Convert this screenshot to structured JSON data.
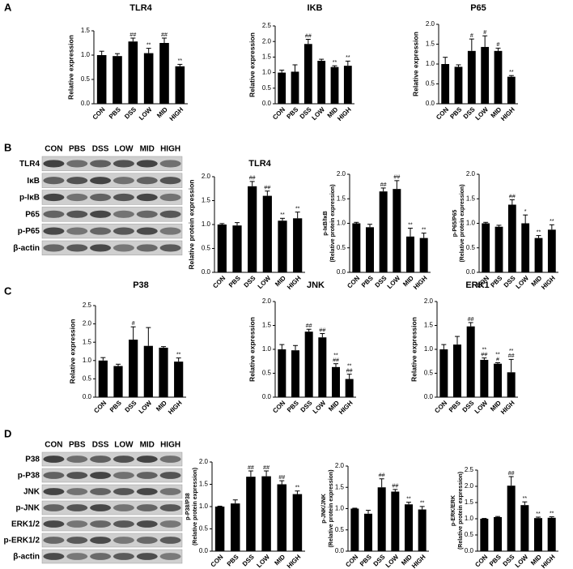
{
  "panels": [
    "A",
    "B",
    "C",
    "D"
  ],
  "blots": [
    {
      "lanes": [
        "CON",
        "PBS",
        "DSS",
        "LOW",
        "MID",
        "HIGH"
      ],
      "rows": [
        "TLR4",
        "IκB",
        "p-IκB",
        "P65",
        "p-P65",
        "β-actin"
      ]
    },
    {
      "lanes": [
        "CON",
        "PBS",
        "DSS",
        "LOW",
        "MID",
        "HIGH"
      ],
      "rows": [
        "P38",
        "p-P38",
        "JNK",
        "p-JNK",
        "ERK1/2",
        "p-ERK1/2",
        "β-actin"
      ]
    }
  ],
  "chart_data": [
    {
      "type": "bar",
      "title": "TLR4",
      "ylabel": "Relative expression",
      "color": "#000000",
      "categories": [
        "CON",
        "PBS",
        "DSS",
        "LOW",
        "MID",
        "HIGH"
      ],
      "values": [
        1.0,
        0.98,
        1.28,
        1.04,
        1.25,
        0.77
      ],
      "errors": [
        0.08,
        0.05,
        0.07,
        0.1,
        0.1,
        0.04
      ],
      "annotations": [
        [],
        [],
        [
          "##"
        ],
        [
          "**"
        ],
        [
          "##"
        ],
        [
          "**"
        ]
      ],
      "ylim": [
        0,
        1.5
      ],
      "yticks": [
        {
          "value": 0,
          "label": "0.0"
        },
        0.5,
        {
          "value": 1,
          "label": "1.0"
        },
        1.5
      ]
    },
    {
      "type": "bar",
      "title": "IKB",
      "ylabel": "Relative expression",
      "color": "#000000",
      "categories": [
        "CON",
        "PBS",
        "DSS",
        "LOW",
        "MID",
        "HIGH"
      ],
      "values": [
        1.0,
        1.03,
        1.92,
        1.38,
        1.18,
        1.22
      ],
      "errors": [
        0.08,
        0.22,
        0.15,
        0.05,
        0.04,
        0.15
      ],
      "annotations": [
        [],
        [],
        [
          "##"
        ],
        [],
        [
          "**"
        ],
        [
          "**"
        ]
      ],
      "ylim": [
        0,
        2.5
      ],
      "yticks": [
        {
          "value": 0,
          "label": "0.0"
        },
        0.5,
        {
          "value": 1,
          "label": "1.0"
        },
        1.5,
        {
          "value": 2,
          "label": "2.0"
        },
        2.5
      ]
    },
    {
      "type": "bar",
      "title": "P65",
      "ylabel": "Relative expression",
      "color": "#000000",
      "categories": [
        "CON",
        "PBS",
        "DSS",
        "LOW",
        "MID",
        "HIGH"
      ],
      "values": [
        1.0,
        0.93,
        1.33,
        1.43,
        1.33,
        0.68
      ],
      "errors": [
        0.17,
        0.05,
        0.3,
        0.28,
        0.07,
        0.03
      ],
      "annotations": [
        [],
        [],
        [
          "#"
        ],
        [
          "#"
        ],
        [
          "#"
        ],
        [
          "**"
        ]
      ],
      "ylim": [
        0,
        2.0
      ],
      "yticks": [
        {
          "value": 0,
          "label": "0.0"
        },
        0.5,
        {
          "value": 1,
          "label": "1.0"
        },
        1.5,
        {
          "value": 2,
          "label": "2.0"
        }
      ]
    },
    {
      "type": "bar",
      "title": "TLR4",
      "ylabel": "Relative protein expression",
      "color": "#000000",
      "categories": [
        "CON",
        "PBS",
        "DSS",
        "LOW",
        "MID",
        "HIGH"
      ],
      "values": [
        1.0,
        0.98,
        1.8,
        1.6,
        1.08,
        1.13
      ],
      "errors": [
        0.02,
        0.06,
        0.1,
        0.1,
        0.05,
        0.13
      ],
      "annotations": [
        [],
        [],
        [
          "##"
        ],
        [
          "##"
        ],
        [
          "**"
        ],
        [
          "**"
        ]
      ],
      "ylim": [
        0,
        2.0
      ],
      "yticks": [
        {
          "value": 0,
          "label": "0.0"
        },
        0.5,
        {
          "value": 1,
          "label": "1.0"
        },
        1.5,
        {
          "value": 2,
          "label": "2.0"
        }
      ]
    },
    {
      "type": "bar",
      "ylabel": [
        "p-IκB/IκB",
        "(Relative protein expression)"
      ],
      "color": "#000000",
      "categories": [
        "CON",
        "PBS",
        "DSS",
        "LOW",
        "MID",
        "HIGH"
      ],
      "values": [
        1.0,
        0.92,
        1.65,
        1.7,
        0.73,
        0.7
      ],
      "errors": [
        0.02,
        0.06,
        0.07,
        0.17,
        0.17,
        0.1
      ],
      "annotations": [
        [],
        [],
        [
          "##"
        ],
        [
          "##"
        ],
        [
          "**"
        ],
        [
          "**"
        ]
      ],
      "ylim": [
        0,
        2.0
      ],
      "yticks": [
        {
          "value": 0,
          "label": "0.0"
        },
        0.5,
        {
          "value": 1,
          "label": "1.0"
        },
        1.5,
        {
          "value": 2,
          "label": "2.0"
        }
      ]
    },
    {
      "type": "bar",
      "ylabel": [
        "p-P65/P65",
        "(Relative protein expression)"
      ],
      "color": "#000000",
      "categories": [
        "CON",
        "PBS",
        "DSS",
        "LOW",
        "MID",
        "HIGH"
      ],
      "values": [
        1.0,
        0.93,
        1.38,
        1.0,
        0.7,
        0.87
      ],
      "errors": [
        0.02,
        0.03,
        0.1,
        0.17,
        0.05,
        0.1
      ],
      "annotations": [
        [],
        [],
        [
          "##"
        ],
        [
          "*"
        ],
        [
          "**"
        ],
        [
          "**"
        ]
      ],
      "ylim": [
        0,
        2.0
      ],
      "yticks": [
        {
          "value": 0,
          "label": "0.0"
        },
        0.5,
        {
          "value": 1,
          "label": "1.0"
        },
        1.5,
        {
          "value": 2,
          "label": "2.0"
        }
      ]
    },
    {
      "type": "bar",
      "title": "P38",
      "ylabel": "Relative expression",
      "color": "#000000",
      "categories": [
        "CON",
        "PBS",
        "DSS",
        "LOW",
        "MID",
        "HIGH"
      ],
      "values": [
        1.0,
        0.85,
        1.57,
        1.4,
        1.35,
        0.97
      ],
      "errors": [
        0.08,
        0.05,
        0.35,
        0.5,
        0.03,
        0.1
      ],
      "annotations": [
        [],
        [],
        [
          "#"
        ],
        [],
        [],
        [
          "**"
        ]
      ],
      "ylim": [
        0,
        2.5
      ],
      "yticks": [
        {
          "value": 0,
          "label": "0.0"
        },
        0.5,
        {
          "value": 1,
          "label": "1.0"
        },
        1.5,
        {
          "value": 2,
          "label": "2.0"
        },
        2.5
      ]
    },
    {
      "type": "bar",
      "title": "JNK",
      "ylabel": "Relative expression",
      "color": "#000000",
      "categories": [
        "CON",
        "PBS",
        "DSS",
        "LOW",
        "MID",
        "HIGH"
      ],
      "values": [
        1.0,
        0.98,
        1.37,
        1.25,
        0.63,
        0.38
      ],
      "errors": [
        0.1,
        0.1,
        0.05,
        0.08,
        0.07,
        0.1
      ],
      "annotations": [
        [],
        [],
        [
          "##"
        ],
        [
          "##"
        ],
        [
          "**",
          "##"
        ],
        [
          "**",
          "##"
        ]
      ],
      "ylim": [
        0,
        2.0
      ],
      "yticks": [
        {
          "value": 0,
          "label": "0.0"
        },
        0.5,
        {
          "value": 1,
          "label": "1.0"
        },
        1.5,
        {
          "value": 2,
          "label": "2.0"
        }
      ]
    },
    {
      "type": "bar",
      "title": "ERK1",
      "ylabel": "Relative expression",
      "color": "#000000",
      "categories": [
        "CON",
        "PBS",
        "DSS",
        "LOW",
        "MID",
        "HIGH"
      ],
      "values": [
        1.0,
        1.1,
        1.48,
        0.78,
        0.7,
        0.52
      ],
      "errors": [
        0.1,
        0.17,
        0.08,
        0.04,
        0.02,
        0.27
      ],
      "annotations": [
        [],
        [],
        [
          "##"
        ],
        [
          "**",
          "##"
        ],
        [
          "**",
          "#"
        ],
        [
          "**",
          "##"
        ]
      ],
      "ylim": [
        0,
        2.0
      ],
      "yticks": [
        {
          "value": 0,
          "label": "0.0"
        },
        0.5,
        {
          "value": 1,
          "label": "1.0"
        },
        1.5,
        {
          "value": 2,
          "label": "2.0"
        }
      ]
    },
    {
      "type": "bar",
      "ylabel": [
        "p-P38/P38",
        "(Relative protein expression)"
      ],
      "color": "#000000",
      "categories": [
        "CON",
        "PBS",
        "DSS",
        "LOW",
        "MID",
        "HIGH"
      ],
      "values": [
        1.0,
        1.07,
        1.67,
        1.68,
        1.5,
        1.28
      ],
      "errors": [
        0.01,
        0.08,
        0.13,
        0.12,
        0.08,
        0.07
      ],
      "annotations": [
        [],
        [],
        [
          "##"
        ],
        [
          "##"
        ],
        [
          "##"
        ],
        [
          "**"
        ]
      ],
      "ylim": [
        0,
        2.0
      ],
      "yticks": [
        {
          "value": 0,
          "label": "0.0"
        },
        0.5,
        {
          "value": 1,
          "label": "1.0"
        },
        1.5,
        {
          "value": 2,
          "label": "2.0"
        }
      ]
    },
    {
      "type": "bar",
      "ylabel": [
        "p-JNK/JNK",
        "(Relative protein expression)"
      ],
      "color": "#000000",
      "categories": [
        "CON",
        "PBS",
        "DSS",
        "LOW",
        "MID",
        "HIGH"
      ],
      "values": [
        1.0,
        0.88,
        1.5,
        1.4,
        1.1,
        0.98
      ],
      "errors": [
        0.01,
        0.08,
        0.2,
        0.05,
        0.05,
        0.07
      ],
      "annotations": [
        [],
        [],
        [
          "##"
        ],
        [
          "##"
        ],
        [
          "**"
        ],
        [
          "**"
        ]
      ],
      "ylim": [
        0,
        2.0
      ],
      "yticks": [
        {
          "value": 0,
          "label": "0.0"
        },
        0.5,
        {
          "value": 1,
          "label": "1.0"
        },
        1.5,
        {
          "value": 2,
          "label": "2.0"
        }
      ]
    },
    {
      "type": "bar",
      "ylabel": [
        "p-ERK/ERK",
        "(Relative protein expression)"
      ],
      "color": "#000000",
      "categories": [
        "CON",
        "PBS",
        "DSS",
        "LOW",
        "MID",
        "HIGH"
      ],
      "values": [
        1.0,
        1.05,
        2.02,
        1.42,
        1.02,
        1.03
      ],
      "errors": [
        0.01,
        0.02,
        0.28,
        0.1,
        0.03,
        0.03
      ],
      "annotations": [
        [],
        [],
        [
          "##"
        ],
        [
          "**"
        ],
        [
          "**"
        ],
        [
          "**"
        ]
      ],
      "ylim": [
        0,
        2.5
      ],
      "yticks": [
        {
          "value": 0,
          "label": "0.0"
        },
        0.5,
        {
          "value": 1,
          "label": "1.0"
        },
        1.5,
        {
          "value": 2,
          "label": "2.0"
        },
        2.5
      ]
    }
  ]
}
